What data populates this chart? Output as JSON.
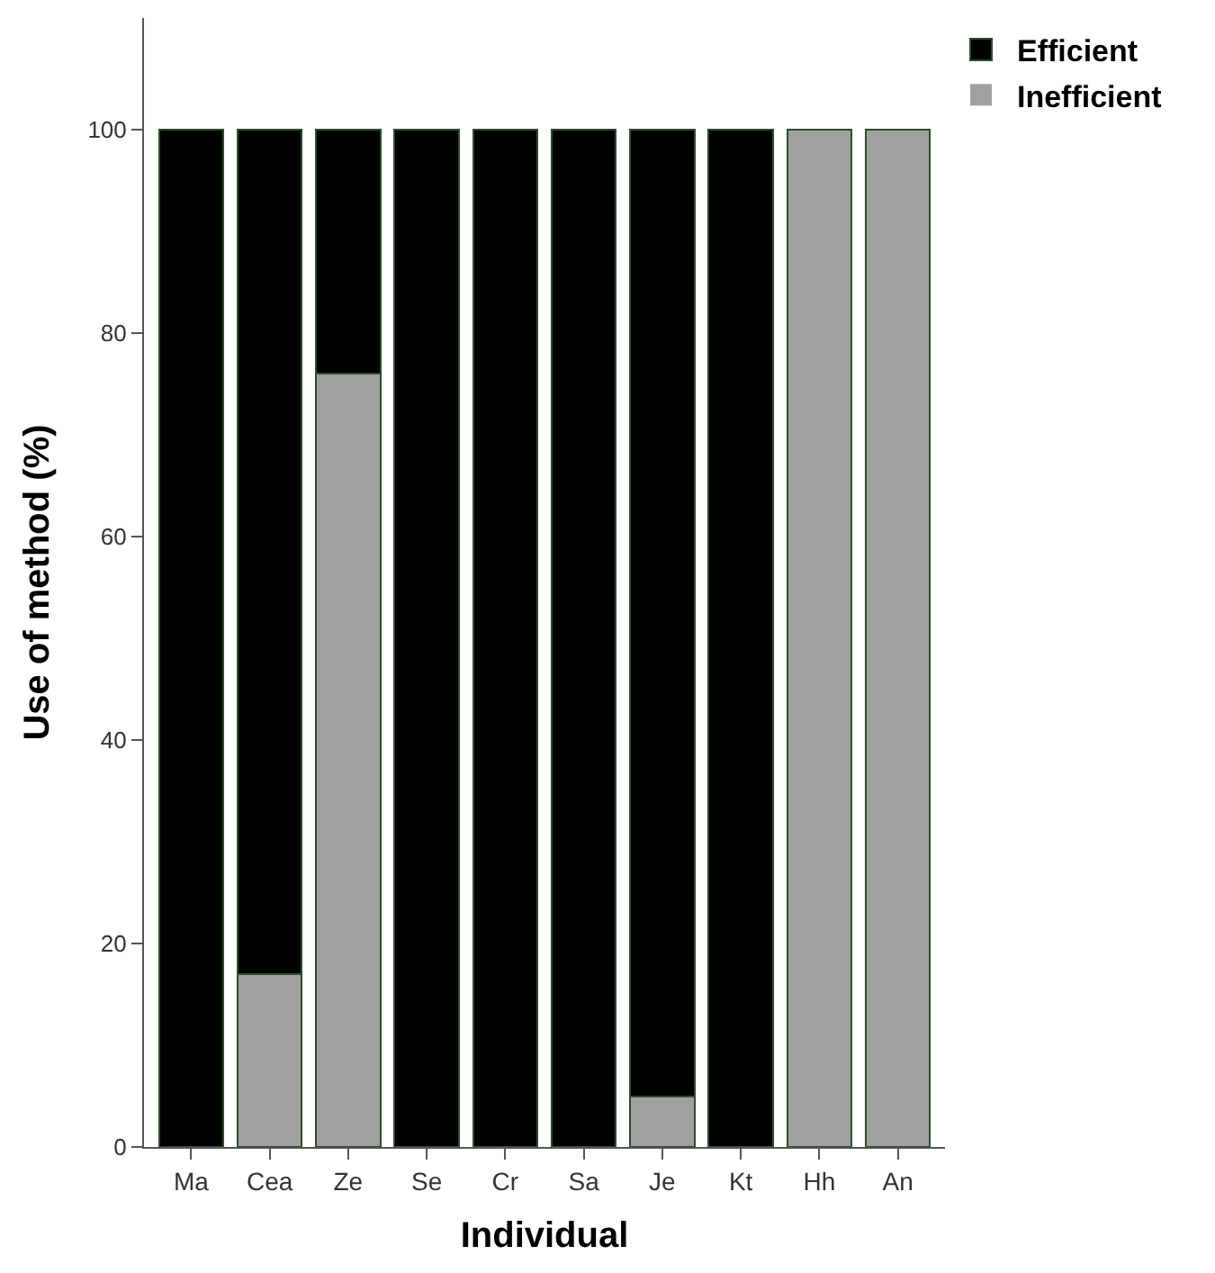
{
  "chart_data": {
    "type": "bar",
    "stacked": true,
    "xlabel": "Individual",
    "ylabel": "Use of method (%)",
    "categories": [
      "Ma",
      "Cea",
      "Ze",
      "Se",
      "Cr",
      "Sa",
      "Je",
      "Kt",
      "Hh",
      "An"
    ],
    "series": [
      {
        "name": "Inefficient",
        "color": "#a0a0a0",
        "values": [
          0,
          17,
          76,
          0,
          0,
          0,
          5,
          0,
          100,
          100
        ]
      },
      {
        "name": "Efficient",
        "color": "#000000",
        "values": [
          100,
          83,
          24,
          100,
          100,
          100,
          95,
          100,
          0,
          0
        ]
      }
    ],
    "ylim": [
      0,
      111
    ],
    "yticks": [
      0,
      20,
      40,
      60,
      80,
      100
    ],
    "legend": "top right"
  }
}
